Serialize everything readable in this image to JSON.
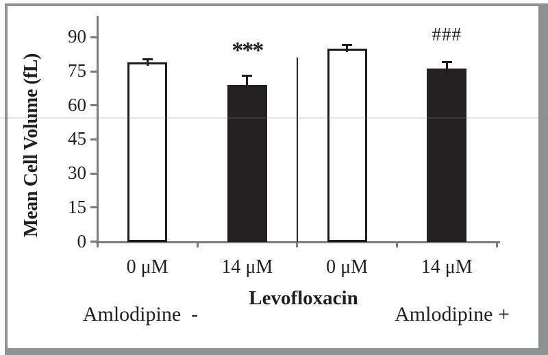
{
  "figure": {
    "background": "#ffffff",
    "frame_color": "#8e9092"
  },
  "colors": {
    "axis": "#797b7d",
    "text": "#231f20",
    "bar_black_fill": "#242021",
    "bar_white_fill": "#ffffff",
    "bar_border": "#1f1b1c"
  },
  "chart_data": {
    "type": "bar",
    "title": "",
    "ylabel": "Mean Cell Volume (fL)",
    "xlabel": "Levofloxacin",
    "categories": [
      "0 μM",
      "14 μM",
      "0 μM",
      "14 μM"
    ],
    "group_labels": [
      "Amlodipine  -",
      "Amlodipine +"
    ],
    "values": [
      79,
      69,
      85,
      76.3
    ],
    "errors_plus": [
      1.4,
      4.0,
      1.7,
      2.8
    ],
    "bar_fills": [
      "white",
      "black",
      "white",
      "black"
    ],
    "annotations": [
      {
        "bar_index": 1,
        "text": "***"
      },
      {
        "bar_index": 3,
        "text": "###"
      }
    ],
    "yticks": [
      0,
      15,
      30,
      45,
      60,
      75,
      90
    ],
    "ylim": [
      0,
      99.5
    ],
    "grid": false,
    "legend": "none",
    "panel_separator": {
      "between_bar_indices": [
        1,
        2
      ],
      "top_value": 81
    }
  }
}
